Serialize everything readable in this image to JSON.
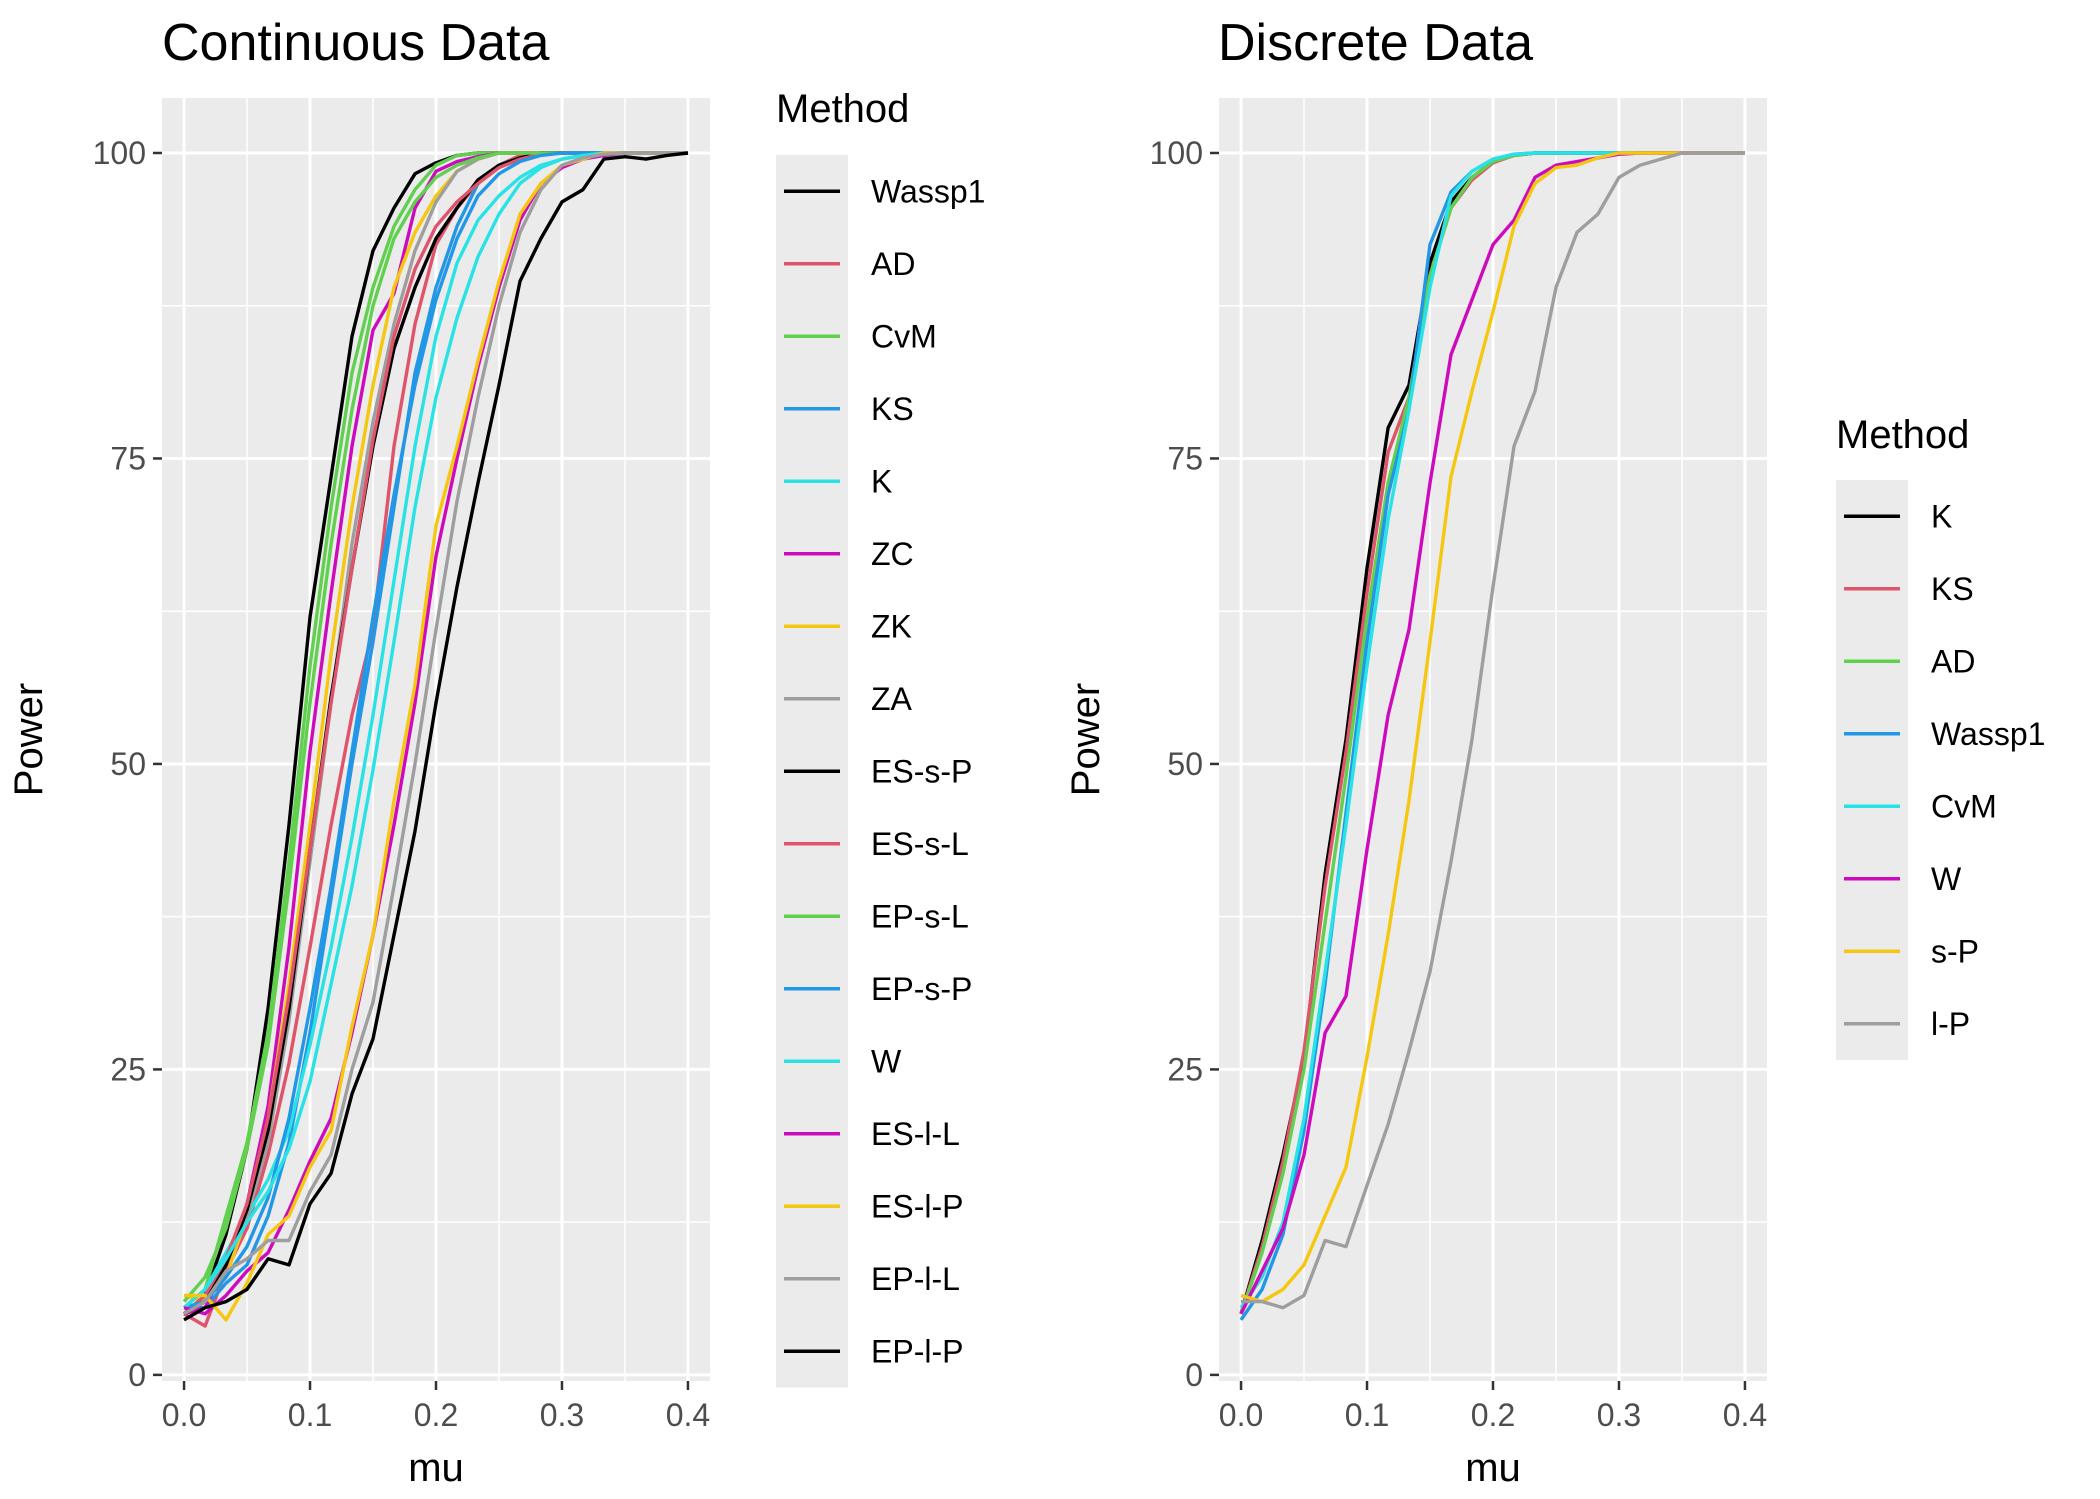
{
  "chart_data": [
    {
      "type": "line",
      "title": "Continuous Data",
      "xlabel": "mu",
      "ylabel": "Power",
      "xlim": [
        -0.0175,
        0.4175
      ],
      "ylim": [
        -0.5,
        104.5
      ],
      "xticks": [
        0.0,
        0.1,
        0.2,
        0.3,
        0.4
      ],
      "xtick_labels": [
        "0.0",
        "0.1",
        "0.2",
        "0.3",
        "0.4"
      ],
      "yticks": [
        0,
        25,
        50,
        75,
        100
      ],
      "ytick_labels": [
        "0",
        "25",
        "50",
        "75",
        "100"
      ],
      "grid": true,
      "legend": {
        "title": "Method",
        "position": "right"
      },
      "x": [
        0.0,
        0.0167,
        0.0333,
        0.05,
        0.0667,
        0.0833,
        0.1,
        0.1167,
        0.1333,
        0.15,
        0.1667,
        0.1833,
        0.2,
        0.2167,
        0.2333,
        0.25,
        0.2667,
        0.2833,
        0.3,
        0.3167,
        0.3333,
        0.35,
        0.3667,
        0.3833,
        0.4
      ],
      "series": [
        {
          "name": "Wassp1",
          "color": "#000000",
          "values": [
            5.0,
            6.5,
            11.5,
            18.5,
            30.0,
            45.0,
            62.0,
            73.5,
            85.0,
            92.0,
            95.5,
            98.3,
            99.2,
            99.8,
            100,
            100,
            100,
            100,
            100,
            100,
            100,
            100,
            100,
            100,
            100
          ]
        },
        {
          "name": "AD",
          "color": "#DF536B",
          "values": [
            5.0,
            4.0,
            8.5,
            12.0,
            18.0,
            25.5,
            35.0,
            45.0,
            54.0,
            61.0,
            76.0,
            86.0,
            92.5,
            95.5,
            97.5,
            99.0,
            99.8,
            100,
            100,
            100,
            100,
            100,
            100,
            100,
            100
          ]
        },
        {
          "name": "CvM",
          "color": "#61D04F",
          "values": [
            5.5,
            7.0,
            13.0,
            19.0,
            28.0,
            42.0,
            58.0,
            71.0,
            82.0,
            89.0,
            94.0,
            97.0,
            99.0,
            99.8,
            100,
            100,
            100,
            100,
            100,
            100,
            100,
            100,
            100,
            100,
            100
          ]
        },
        {
          "name": "KS",
          "color": "#2297E6",
          "values": [
            5.5,
            5.5,
            7.5,
            9.0,
            13.0,
            19.0,
            28.0,
            39.0,
            50.0,
            60.0,
            71.0,
            82.0,
            89.0,
            94.0,
            97.5,
            99.0,
            99.6,
            99.9,
            100,
            100,
            100,
            100,
            100,
            100,
            100
          ]
        },
        {
          "name": "K",
          "color": "#28E2E5",
          "values": [
            5.5,
            7.0,
            10.0,
            13.0,
            16.0,
            20.0,
            27.0,
            35.0,
            44.0,
            54.0,
            65.0,
            76.0,
            85.0,
            91.0,
            94.5,
            96.5,
            98.0,
            99.0,
            99.5,
            99.8,
            100,
            100,
            100,
            100,
            100
          ]
        },
        {
          "name": "ZC",
          "color": "#CD0BBC",
          "values": [
            5.0,
            5.5,
            9.0,
            14.0,
            22.0,
            35.0,
            51.0,
            64.0,
            76.0,
            85.5,
            88.5,
            95.5,
            98.5,
            99.3,
            99.7,
            100,
            100,
            100,
            100,
            100,
            100,
            100,
            100,
            100,
            100
          ]
        },
        {
          "name": "ZK",
          "color": "#F5C710",
          "values": [
            6.5,
            6.0,
            8.0,
            13.0,
            21.0,
            32.0,
            45.0,
            59.0,
            71.0,
            81.0,
            89.0,
            93.5,
            96.5,
            98.5,
            99.5,
            100,
            100,
            100,
            100,
            100,
            100,
            100,
            100,
            100,
            100
          ]
        },
        {
          "name": "ZA",
          "color": "#9E9E9E",
          "values": [
            5.5,
            6.0,
            9.0,
            13.0,
            19.0,
            29.0,
            42.0,
            55.0,
            68.0,
            78.0,
            86.0,
            92.0,
            96.0,
            98.5,
            99.5,
            100,
            100,
            100,
            100,
            100,
            100,
            100,
            100,
            100,
            100
          ]
        },
        {
          "name": "ES-s-P",
          "color": "#000000",
          "values": [
            5.0,
            6.0,
            9.0,
            13.5,
            20.0,
            30.0,
            43.0,
            55.5,
            66.0,
            76.0,
            84.0,
            89.0,
            93.0,
            95.5,
            97.8,
            99.0,
            99.6,
            100,
            100,
            100,
            100,
            100,
            100,
            100,
            100
          ]
        },
        {
          "name": "ES-s-L",
          "color": "#DF536B",
          "values": [
            5.0,
            6.5,
            9.5,
            14.0,
            21.0,
            31.0,
            43.0,
            55.0,
            66.0,
            76.5,
            85.0,
            90.5,
            94.0,
            96.0,
            97.5,
            98.8,
            99.5,
            99.9,
            100,
            100,
            100,
            100,
            100,
            100,
            100
          ]
        },
        {
          "name": "EP-s-L",
          "color": "#61D04F",
          "values": [
            6.0,
            8.0,
            12.0,
            18.5,
            27.0,
            40.0,
            55.0,
            68.0,
            79.0,
            87.5,
            93.0,
            96.0,
            98.0,
            99.0,
            99.6,
            100,
            100,
            100,
            100,
            100,
            100,
            100,
            100,
            100,
            100
          ]
        },
        {
          "name": "EP-s-P",
          "color": "#2297E6",
          "values": [
            5.5,
            6.0,
            8.0,
            10.5,
            14.5,
            21.0,
            30.0,
            40.0,
            51.0,
            62.0,
            72.0,
            81.0,
            88.0,
            93.0,
            96.5,
            98.3,
            99.3,
            99.8,
            100,
            100,
            100,
            100,
            100,
            100,
            100
          ]
        },
        {
          "name": "W",
          "color": "#28E2E5",
          "values": [
            5.5,
            7.0,
            9.5,
            12.5,
            15.0,
            18.5,
            24.0,
            32.0,
            40.0,
            49.5,
            60.0,
            71.0,
            80.0,
            86.5,
            91.5,
            95.0,
            97.5,
            98.8,
            99.5,
            99.8,
            100,
            100,
            100,
            100,
            100
          ]
        },
        {
          "name": "ES-l-L",
          "color": "#CD0BBC",
          "values": [
            5.5,
            5.0,
            6.5,
            8.5,
            10.0,
            13.5,
            17.5,
            21.0,
            28.0,
            36.0,
            45.0,
            55.0,
            67.0,
            75.0,
            82.5,
            89.0,
            94.5,
            97.5,
            98.8,
            99.5,
            99.8,
            100,
            100,
            100,
            100
          ]
        },
        {
          "name": "ES-l-P",
          "color": "#F5C710",
          "values": [
            6.5,
            6.5,
            4.5,
            7.5,
            11.5,
            13.0,
            17.0,
            20.0,
            28.5,
            36.0,
            47.0,
            56.5,
            69.5,
            76.0,
            83.0,
            89.5,
            95.0,
            97.5,
            99.0,
            99.5,
            100,
            100,
            100,
            100,
            100
          ]
        },
        {
          "name": "EP-l-L",
          "color": "#9E9E9E",
          "values": [
            5.0,
            6.0,
            8.5,
            9.5,
            11.0,
            11.0,
            15.0,
            18.0,
            25.0,
            30.5,
            40.0,
            50.0,
            61.0,
            71.5,
            80.0,
            87.5,
            93.5,
            97.0,
            99.0,
            99.6,
            99.9,
            100,
            100,
            100,
            100
          ]
        },
        {
          "name": "EP-l-P",
          "color": "#000000",
          "values": [
            4.5,
            5.5,
            6.0,
            7.0,
            9.5,
            9.0,
            14.0,
            16.5,
            23.0,
            27.5,
            36.0,
            44.5,
            55.0,
            64.5,
            73.0,
            81.0,
            89.5,
            93.0,
            96.0,
            97.0,
            99.5,
            99.7,
            99.5,
            99.8,
            100
          ]
        }
      ]
    },
    {
      "type": "line",
      "title": "Discrete Data",
      "xlabel": "mu",
      "ylabel": "Power",
      "xlim": [
        -0.0175,
        0.4175
      ],
      "ylim": [
        -0.5,
        104.5
      ],
      "xticks": [
        0.0,
        0.1,
        0.2,
        0.3,
        0.4
      ],
      "xtick_labels": [
        "0.0",
        "0.1",
        "0.2",
        "0.3",
        "0.4"
      ],
      "yticks": [
        0,
        25,
        50,
        75,
        100
      ],
      "ytick_labels": [
        "0",
        "25",
        "50",
        "75",
        "100"
      ],
      "grid": true,
      "legend": {
        "title": "Method",
        "position": "right"
      },
      "x": [
        0.0,
        0.0167,
        0.0333,
        0.05,
        0.0667,
        0.0833,
        0.1,
        0.1167,
        0.1333,
        0.15,
        0.1667,
        0.1833,
        0.2,
        0.2167,
        0.2333,
        0.25,
        0.2667,
        0.2833,
        0.3,
        0.3167,
        0.3333,
        0.35,
        0.3667,
        0.3833,
        0.4
      ],
      "series": [
        {
          "name": "K",
          "color": "#000000",
          "values": [
            5.0,
            11.0,
            18.0,
            26.0,
            41.0,
            52.0,
            66.0,
            77.5,
            81.0,
            91.0,
            96.0,
            98.0,
            99.3,
            99.8,
            100,
            100,
            100,
            100,
            100,
            100,
            100,
            100,
            100,
            100,
            100
          ]
        },
        {
          "name": "KS",
          "color": "#DF536B",
          "values": [
            5.0,
            10.5,
            17.5,
            26.5,
            40.0,
            51.0,
            64.0,
            75.5,
            80.0,
            90.0,
            95.5,
            97.8,
            99.2,
            99.8,
            100,
            100,
            100,
            100,
            100,
            100,
            100,
            100,
            100,
            100,
            100
          ]
        },
        {
          "name": "AD",
          "color": "#61D04F",
          "values": [
            5.0,
            10.0,
            16.5,
            25.0,
            37.0,
            49.0,
            62.0,
            73.0,
            80.0,
            90.0,
            95.5,
            98.0,
            99.3,
            99.8,
            100,
            100,
            100,
            100,
            100,
            100,
            100,
            100,
            100,
            100,
            100
          ]
        },
        {
          "name": "Wassp1",
          "color": "#2297E6",
          "values": [
            4.5,
            7.0,
            11.5,
            20.0,
            32.0,
            46.0,
            60.0,
            72.0,
            79.0,
            92.5,
            96.8,
            98.5,
            99.5,
            99.9,
            100,
            100,
            100,
            100,
            100,
            100,
            100,
            100,
            100,
            100,
            100
          ]
        },
        {
          "name": "CvM",
          "color": "#28E2E5",
          "values": [
            5.5,
            8.0,
            12.5,
            21.0,
            33.0,
            45.0,
            58.0,
            70.0,
            79.0,
            89.0,
            96.5,
            98.5,
            99.5,
            99.9,
            100,
            100,
            100,
            100,
            100,
            100,
            100,
            100,
            100,
            100,
            100
          ]
        },
        {
          "name": "W",
          "color": "#CD0BBC",
          "values": [
            5.0,
            8.5,
            12.0,
            18.0,
            28.0,
            31.0,
            43.0,
            54.0,
            61.0,
            73.0,
            83.5,
            88.0,
            92.5,
            94.5,
            98.0,
            99.0,
            99.3,
            99.6,
            99.9,
            100,
            100,
            100,
            100,
            100,
            100
          ]
        },
        {
          "name": "s-P",
          "color": "#F5C710",
          "values": [
            6.5,
            6.0,
            7.0,
            9.0,
            13.0,
            17.0,
            26.0,
            36.0,
            47.0,
            60.0,
            73.5,
            80.5,
            87.0,
            94.0,
            97.5,
            98.8,
            99.0,
            99.6,
            100,
            100,
            100,
            100,
            100,
            100,
            100
          ]
        },
        {
          "name": "l-P",
          "color": "#9E9E9E",
          "values": [
            6.0,
            6.0,
            5.5,
            6.5,
            11.0,
            10.5,
            15.5,
            20.5,
            26.5,
            33.0,
            42.0,
            52.0,
            64.5,
            76.0,
            80.5,
            89.0,
            93.5,
            95.0,
            98.0,
            99.0,
            99.5,
            100,
            100,
            100,
            100
          ]
        }
      ]
    }
  ]
}
